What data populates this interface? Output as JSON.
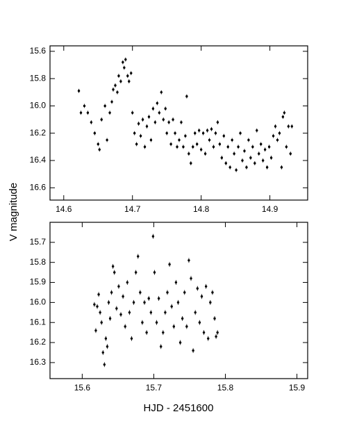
{
  "chart_data": [
    {
      "type": "scatter",
      "color": "#000000",
      "yaxis_inverted": true,
      "yerr": 0.015,
      "xlim": [
        14.58,
        14.955
      ],
      "ylim": [
        15.56,
        16.69
      ],
      "xticks": [
        14.6,
        14.7,
        14.8,
        14.9
      ],
      "yticks": [
        15.6,
        15.8,
        {
          "value": 16,
          "label": "16.0"
        },
        16.2,
        16.4,
        16.6
      ],
      "x": [
        14.622,
        14.625,
        14.63,
        14.635,
        14.64,
        14.645,
        14.65,
        14.652,
        14.655,
        14.66,
        14.663,
        14.667,
        14.67,
        14.672,
        14.675,
        14.678,
        14.68,
        14.683,
        14.686,
        14.688,
        14.69,
        14.693,
        14.695,
        14.698,
        14.7,
        14.703,
        14.706,
        14.709,
        14.712,
        14.715,
        14.718,
        14.721,
        14.724,
        14.727,
        14.73,
        14.733,
        14.736,
        14.739,
        14.742,
        14.745,
        14.748,
        14.75,
        14.753,
        14.756,
        14.759,
        14.762,
        14.765,
        14.768,
        14.771,
        14.774,
        14.777,
        14.779,
        14.782,
        14.785,
        14.788,
        14.791,
        14.794,
        14.797,
        14.8,
        14.803,
        14.806,
        14.809,
        14.812,
        14.815,
        14.818,
        14.821,
        14.824,
        14.827,
        14.83,
        14.833,
        14.836,
        14.839,
        14.842,
        14.845,
        14.848,
        14.851,
        14.854,
        14.857,
        14.86,
        14.863,
        14.866,
        14.869,
        14.872,
        14.875,
        14.878,
        14.881,
        14.884,
        14.887,
        14.89,
        14.893,
        14.896,
        14.899,
        14.902,
        14.905,
        14.908,
        14.911,
        14.914,
        14.917,
        14.919,
        14.921,
        14.924,
        14.927,
        14.93,
        14.932
      ],
      "values": [
        15.89,
        16.05,
        16.0,
        16.05,
        16.12,
        16.2,
        16.28,
        16.32,
        16.1,
        16.0,
        16.25,
        16.05,
        15.97,
        15.88,
        15.85,
        15.9,
        15.78,
        15.82,
        15.68,
        15.72,
        15.66,
        15.78,
        15.82,
        15.76,
        16.05,
        16.2,
        16.28,
        16.13,
        16.22,
        16.1,
        16.3,
        16.15,
        16.08,
        16.25,
        16.02,
        16.12,
        15.98,
        16.05,
        15.9,
        16.1,
        16.02,
        16.2,
        16.12,
        16.28,
        16.1,
        16.2,
        16.3,
        16.25,
        16.12,
        16.3,
        16.22,
        15.93,
        16.35,
        16.42,
        16.3,
        16.2,
        16.28,
        16.18,
        16.32,
        16.2,
        16.35,
        16.18,
        16.25,
        16.17,
        16.3,
        16.2,
        16.12,
        16.28,
        16.38,
        16.22,
        16.42,
        16.3,
        16.45,
        16.25,
        16.35,
        16.47,
        16.3,
        16.2,
        16.4,
        16.33,
        16.45,
        16.25,
        16.38,
        16.3,
        16.42,
        16.18,
        16.35,
        16.28,
        16.4,
        16.32,
        16.45,
        16.3,
        16.38,
        16.22,
        16.15,
        16.25,
        16.2,
        16.45,
        16.08,
        16.05,
        16.3,
        16.15,
        16.35,
        16.15
      ],
      "ylabel": "V magnitude"
    },
    {
      "type": "scatter",
      "color": "#000000",
      "yaxis_inverted": true,
      "yerr": 0.012,
      "xlim": [
        15.555,
        15.915
      ],
      "ylim": [
        15.6,
        16.38
      ],
      "xticks": [
        15.6,
        15.7,
        15.8,
        15.9
      ],
      "yticks": [
        15.7,
        15.8,
        15.9,
        {
          "value": 16,
          "label": "16.0"
        },
        16.1,
        16.2,
        16.3
      ],
      "x": [
        15.617,
        15.619,
        15.621,
        15.623,
        15.625,
        15.627,
        15.629,
        15.631,
        15.633,
        15.635,
        15.637,
        15.639,
        15.641,
        15.643,
        15.645,
        15.648,
        15.651,
        15.654,
        15.657,
        15.66,
        15.663,
        15.666,
        15.669,
        15.672,
        15.675,
        15.678,
        15.681,
        15.684,
        15.687,
        15.69,
        15.693,
        15.696,
        15.699,
        15.701,
        15.704,
        15.707,
        15.71,
        15.713,
        15.716,
        15.719,
        15.722,
        15.725,
        15.728,
        15.731,
        15.734,
        15.737,
        15.74,
        15.743,
        15.746,
        15.749,
        15.752,
        15.755,
        15.758,
        15.761,
        15.764,
        15.767,
        15.77,
        15.773,
        15.776,
        15.779,
        15.782,
        15.785,
        15.787,
        15.789
      ],
      "values": [
        16.01,
        16.14,
        16.02,
        15.96,
        16.05,
        16.1,
        16.25,
        16.31,
        16.18,
        16.22,
        16.0,
        16.08,
        15.95,
        15.82,
        15.85,
        16.03,
        15.92,
        16.06,
        15.97,
        16.12,
        15.9,
        16.05,
        16.18,
        16.0,
        15.85,
        15.77,
        15.95,
        16.1,
        16.0,
        16.15,
        15.98,
        16.05,
        15.67,
        15.85,
        16.1,
        15.98,
        16.22,
        16.15,
        16.05,
        15.95,
        15.81,
        16.02,
        16.12,
        15.9,
        16.0,
        16.2,
        16.08,
        15.95,
        16.12,
        15.79,
        15.88,
        16.24,
        16.05,
        15.93,
        16.1,
        15.97,
        16.15,
        15.92,
        16.18,
        16.0,
        15.95,
        16.08,
        16.17,
        16.15
      ],
      "xlabel": "HJD - 2451600"
    }
  ]
}
